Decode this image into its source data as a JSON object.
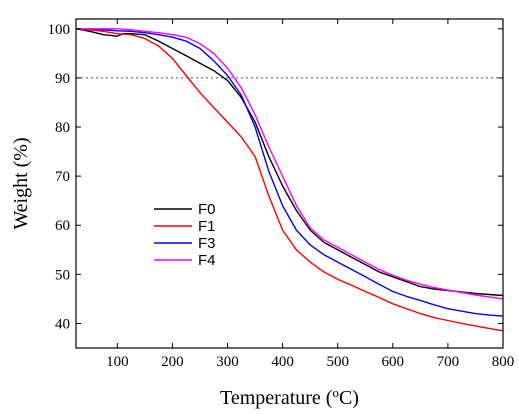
{
  "chart_data": {
    "type": "line",
    "xlabel_main": "Temperature (",
    "xlabel_sup": "o",
    "xlabel_tail": "C)",
    "ylabel": "Weight (%)",
    "xlim": [
      25,
      800
    ],
    "ylim": [
      35,
      102
    ],
    "xticks": [
      100,
      200,
      300,
      400,
      500,
      600,
      700,
      800
    ],
    "yticks": [
      40,
      50,
      60,
      70,
      80,
      90,
      100
    ],
    "grid": false,
    "reference_line": {
      "y": 90,
      "style": "dotted"
    },
    "legend_position": "center-left",
    "series": [
      {
        "name": "F0",
        "color": "#000000",
        "x": [
          25,
          50,
          75,
          100,
          110,
          125,
          150,
          175,
          200,
          225,
          250,
          275,
          300,
          325,
          350,
          375,
          400,
          425,
          450,
          475,
          500,
          525,
          550,
          575,
          600,
          625,
          650,
          675,
          700,
          725,
          750,
          775,
          800
        ],
        "y": [
          100,
          99.5,
          98.8,
          98.5,
          99,
          99,
          98.8,
          97.5,
          96,
          94.5,
          93,
          91.5,
          89.5,
          86,
          81,
          74,
          68,
          63,
          59,
          56.5,
          55,
          53.5,
          52,
          50.5,
          49.5,
          48.5,
          47.5,
          47,
          46.7,
          46.4,
          46.1,
          45.9,
          45.7
        ]
      },
      {
        "name": "F1",
        "color": "#ff0000",
        "x": [
          25,
          50,
          75,
          100,
          125,
          150,
          175,
          200,
          225,
          250,
          275,
          300,
          325,
          350,
          375,
          400,
          425,
          450,
          475,
          500,
          525,
          550,
          575,
          600,
          625,
          650,
          675,
          700,
          725,
          750,
          775,
          800
        ],
        "y": [
          100,
          99.8,
          99.5,
          99,
          98.8,
          98,
          96.5,
          94,
          90.5,
          87,
          84,
          81,
          78,
          74,
          66,
          59,
          55,
          52.5,
          50.5,
          49,
          47.8,
          46.5,
          45.3,
          44,
          43,
          42,
          41.2,
          40.6,
          40,
          39.5,
          39,
          38.5
        ]
      },
      {
        "name": "F3",
        "color": "#0000ff",
        "x": [
          25,
          50,
          75,
          100,
          125,
          150,
          175,
          200,
          225,
          250,
          275,
          300,
          325,
          350,
          375,
          400,
          425,
          450,
          475,
          500,
          525,
          550,
          575,
          600,
          625,
          650,
          675,
          700,
          725,
          750,
          775,
          800
        ],
        "y": [
          100,
          100,
          99.8,
          99.6,
          99.5,
          99.2,
          98.8,
          98.3,
          97.5,
          96,
          93.5,
          90.5,
          86.5,
          80,
          71,
          64,
          59,
          56,
          54,
          52.5,
          51,
          49.5,
          48,
          46.5,
          45.5,
          44.7,
          43.8,
          43,
          42.5,
          42,
          41.7,
          41.5
        ]
      },
      {
        "name": "F4",
        "color": "#ff00ff",
        "x": [
          25,
          50,
          75,
          100,
          125,
          150,
          175,
          200,
          225,
          250,
          275,
          300,
          325,
          350,
          375,
          400,
          425,
          450,
          475,
          500,
          525,
          550,
          575,
          600,
          625,
          650,
          675,
          700,
          725,
          750,
          775,
          800
        ],
        "y": [
          100,
          100,
          100,
          100,
          99.8,
          99.5,
          99.2,
          98.8,
          98.3,
          97,
          95,
          92,
          88,
          82.5,
          76,
          70,
          64,
          59.5,
          57,
          55.5,
          54,
          52.5,
          51,
          49.8,
          48.8,
          48,
          47.3,
          46.8,
          46.3,
          45.8,
          45.4,
          45
        ]
      }
    ]
  }
}
